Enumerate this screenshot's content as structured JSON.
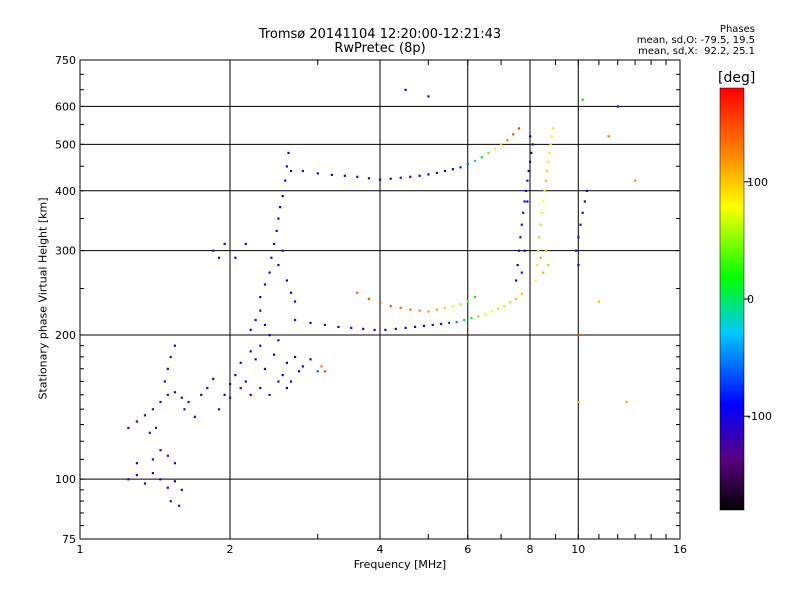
{
  "chart_data": {
    "type": "scatter",
    "title": "Tromsø 20141104 12:20:00-12:21:43",
    "subtitle": "RwPretec (8p)",
    "xlabel": "Frequency [MHz]",
    "ylabel": "Stationary phase Virtual Height [km]",
    "x_scale": "log",
    "y_scale": "log",
    "xlim": [
      1,
      16
    ],
    "ylim": [
      75,
      750
    ],
    "x_ticks": [
      1,
      2,
      4,
      6,
      8,
      10,
      16
    ],
    "y_ticks": [
      75,
      100,
      200,
      300,
      400,
      500,
      600,
      750
    ],
    "grid": true,
    "phase_header": "Phases",
    "phase_stats": [
      "mean, sd,O: -79.5, 19.5",
      "mean, sd,X:  92.2, 25.1"
    ],
    "colorbar": {
      "label": "[deg]",
      "range": [
        -180,
        180
      ],
      "ticks": [
        100,
        0,
        -100
      ]
    },
    "series": [
      {
        "points": [
          [
            1.25,
            100,
            -110
          ],
          [
            1.3,
            102,
            -115
          ],
          [
            1.35,
            98,
            -105
          ],
          [
            1.4,
            103,
            -120
          ],
          [
            1.45,
            100,
            -112
          ],
          [
            1.5,
            96,
            -118
          ],
          [
            1.52,
            90,
            -125
          ],
          [
            1.55,
            99,
            -110
          ],
          [
            1.6,
            95,
            -122
          ],
          [
            1.58,
            88,
            -118
          ],
          [
            1.3,
            108,
            -125
          ],
          [
            1.4,
            110,
            -128
          ],
          [
            1.5,
            112,
            -122
          ],
          [
            1.55,
            108,
            -120
          ],
          [
            1.45,
            115,
            -118
          ],
          [
            1.25,
            128,
            -125
          ],
          [
            1.3,
            132,
            -130
          ],
          [
            1.35,
            136,
            -122
          ],
          [
            1.4,
            140,
            -128
          ],
          [
            1.45,
            145,
            -125
          ],
          [
            1.5,
            150,
            -120
          ],
          [
            1.55,
            152,
            -118
          ],
          [
            1.6,
            148,
            -122
          ],
          [
            1.48,
            160,
            -125
          ],
          [
            1.5,
            170,
            -120
          ],
          [
            1.52,
            180,
            -125
          ],
          [
            1.55,
            190,
            -118
          ],
          [
            1.42,
            128,
            -120
          ],
          [
            1.38,
            125,
            -128
          ],
          [
            1.62,
            140,
            -122
          ],
          [
            1.65,
            145,
            -118
          ],
          [
            1.7,
            135,
            -125
          ],
          [
            1.75,
            150,
            -120
          ],
          [
            1.8,
            155,
            -118
          ],
          [
            1.85,
            162,
            -115
          ],
          [
            1.9,
            140,
            -120
          ],
          [
            1.95,
            150,
            -118
          ],
          [
            2.0,
            158,
            -115
          ],
          [
            2.05,
            165,
            -112
          ],
          [
            2.1,
            175,
            -110
          ],
          [
            2.15,
            160,
            -108
          ],
          [
            2.2,
            185,
            -112
          ],
          [
            2.25,
            178,
            -105
          ],
          [
            2.3,
            190,
            -110
          ],
          [
            2.35,
            170,
            -108
          ],
          [
            2.4,
            200,
            -105
          ],
          [
            2.45,
            182,
            -110
          ],
          [
            2.5,
            195,
            -108
          ],
          [
            2.55,
            165,
            -105
          ],
          [
            2.6,
            175,
            -100
          ],
          [
            2.65,
            160,
            -98
          ],
          [
            2.7,
            180,
            -102
          ],
          [
            2.75,
            168,
            -100
          ],
          [
            2.8,
            172,
            -95
          ],
          [
            2.9,
            178,
            -90
          ],
          [
            3.0,
            168,
            -60
          ],
          [
            3.05,
            172,
            130
          ],
          [
            3.1,
            168,
            150
          ],
          [
            2.2,
            205,
            -110
          ],
          [
            2.25,
            215,
            -112
          ],
          [
            2.3,
            225,
            -108
          ],
          [
            2.35,
            210,
            -112
          ],
          [
            2.0,
            148,
            -120
          ],
          [
            2.1,
            155,
            -118
          ],
          [
            2.2,
            150,
            -112
          ],
          [
            2.3,
            155,
            -110
          ],
          [
            2.4,
            150,
            -108
          ],
          [
            2.5,
            160,
            -105
          ],
          [
            2.6,
            155,
            -102
          ],
          [
            2.3,
            240,
            -110
          ],
          [
            2.35,
            255,
            -112
          ],
          [
            2.4,
            270,
            -108
          ],
          [
            2.42,
            290,
            -110
          ],
          [
            2.45,
            310,
            -112
          ],
          [
            2.48,
            330,
            -105
          ],
          [
            2.5,
            350,
            -108
          ],
          [
            2.52,
            370,
            -100
          ],
          [
            2.55,
            390,
            -102
          ],
          [
            2.58,
            420,
            -105
          ],
          [
            2.6,
            450,
            -98
          ],
          [
            2.62,
            480,
            -100
          ],
          [
            2.65,
            440,
            -95
          ],
          [
            2.55,
            300,
            -105
          ],
          [
            2.5,
            280,
            -108
          ],
          [
            2.6,
            260,
            -102
          ],
          [
            2.65,
            245,
            -100
          ],
          [
            2.7,
            235,
            -98
          ],
          [
            1.85,
            300,
            -112
          ],
          [
            1.9,
            290,
            -115
          ],
          [
            1.95,
            310,
            -108
          ],
          [
            2.05,
            290,
            -110
          ],
          [
            2.15,
            310,
            -105
          ],
          [
            2.7,
            215,
            -105
          ],
          [
            2.9,
            212,
            -108
          ],
          [
            3.1,
            210,
            -110
          ],
          [
            3.3,
            208,
            -112
          ],
          [
            3.5,
            207,
            -115
          ],
          [
            3.7,
            206,
            -118
          ],
          [
            3.9,
            205,
            -120
          ],
          [
            4.1,
            205,
            -118
          ],
          [
            4.3,
            206,
            -115
          ],
          [
            4.5,
            207,
            -110
          ],
          [
            4.7,
            208,
            -105
          ],
          [
            4.9,
            209,
            -100
          ],
          [
            5.1,
            210,
            -95
          ],
          [
            5.3,
            211,
            -85
          ],
          [
            5.5,
            212,
            -70
          ],
          [
            5.7,
            213,
            -50
          ],
          [
            5.9,
            215,
            -20
          ],
          [
            6.1,
            217,
            20
          ],
          [
            6.3,
            219,
            50
          ],
          [
            6.5,
            221,
            70
          ],
          [
            6.7,
            224,
            80
          ],
          [
            6.9,
            227,
            90
          ],
          [
            7.1,
            230,
            95
          ],
          [
            7.3,
            234,
            100
          ],
          [
            7.5,
            238,
            105
          ],
          [
            7.7,
            244,
            100
          ],
          [
            3.6,
            245,
            140
          ],
          [
            3.8,
            238,
            145
          ],
          [
            4.0,
            234,
            150
          ],
          [
            4.2,
            230,
            145
          ],
          [
            4.4,
            228,
            140
          ],
          [
            4.6,
            226,
            135
          ],
          [
            4.8,
            225,
            130
          ],
          [
            5.0,
            224,
            120
          ],
          [
            5.2,
            226,
            110
          ],
          [
            5.4,
            228,
            95
          ],
          [
            5.6,
            230,
            80
          ],
          [
            5.8,
            232,
            60
          ],
          [
            6.0,
            235,
            40
          ],
          [
            6.2,
            240,
            20
          ],
          [
            2.8,
            440,
            -110
          ],
          [
            3.0,
            435,
            -112
          ],
          [
            3.2,
            432,
            -115
          ],
          [
            3.4,
            430,
            -118
          ],
          [
            3.6,
            428,
            -115
          ],
          [
            3.8,
            425,
            -112
          ],
          [
            4.0,
            422,
            -110
          ],
          [
            4.2,
            424,
            -112
          ],
          [
            4.4,
            426,
            -115
          ],
          [
            4.6,
            428,
            -110
          ],
          [
            4.8,
            430,
            -108
          ],
          [
            5.0,
            433,
            -105
          ],
          [
            5.2,
            436,
            -100
          ],
          [
            5.4,
            440,
            -95
          ],
          [
            5.6,
            444,
            -90
          ],
          [
            5.8,
            448,
            -80
          ],
          [
            6.0,
            455,
            -60
          ],
          [
            6.2,
            462,
            -30
          ],
          [
            6.4,
            470,
            10
          ],
          [
            6.6,
            480,
            40
          ],
          [
            6.8,
            490,
            70
          ],
          [
            7.0,
            500,
            100
          ],
          [
            7.2,
            510,
            130
          ],
          [
            7.4,
            525,
            150
          ],
          [
            7.6,
            540,
            160
          ],
          [
            7.5,
            260,
            -100
          ],
          [
            7.55,
            280,
            -105
          ],
          [
            7.6,
            300,
            -110
          ],
          [
            7.65,
            320,
            -108
          ],
          [
            7.7,
            340,
            -105
          ],
          [
            7.75,
            360,
            -110
          ],
          [
            7.8,
            380,
            -108
          ],
          [
            7.85,
            400,
            -112
          ],
          [
            7.9,
            420,
            -110
          ],
          [
            7.95,
            440,
            -105
          ],
          [
            8.0,
            460,
            -100
          ],
          [
            8.05,
            480,
            -110
          ],
          [
            8.1,
            500,
            -108
          ],
          [
            8.0,
            520,
            -105
          ],
          [
            7.9,
            380,
            -95
          ],
          [
            7.8,
            300,
            -90
          ],
          [
            7.7,
            270,
            -85
          ],
          [
            8.2,
            260,
            80
          ],
          [
            8.25,
            280,
            70
          ],
          [
            8.3,
            300,
            60
          ],
          [
            8.35,
            320,
            50
          ],
          [
            8.4,
            340,
            60
          ],
          [
            8.45,
            360,
            70
          ],
          [
            8.5,
            380,
            80
          ],
          [
            8.55,
            400,
            90
          ],
          [
            8.6,
            420,
            100
          ],
          [
            8.65,
            440,
            95
          ],
          [
            8.7,
            460,
            90
          ],
          [
            8.75,
            480,
            85
          ],
          [
            8.8,
            500,
            80
          ],
          [
            8.85,
            520,
            75
          ],
          [
            8.9,
            540,
            70
          ],
          [
            8.6,
            300,
            100
          ],
          [
            8.7,
            280,
            105
          ],
          [
            8.5,
            270,
            110
          ],
          [
            8.4,
            290,
            115
          ],
          [
            9.9,
            300,
            -100
          ],
          [
            10.0,
            320,
            -105
          ],
          [
            10.1,
            340,
            -110
          ],
          [
            10.2,
            360,
            -108
          ],
          [
            10.3,
            380,
            -105
          ],
          [
            10.4,
            400,
            -110
          ],
          [
            10.0,
            280,
            -100
          ],
          [
            10.0,
            200,
            155
          ],
          [
            10.0,
            145,
            110
          ],
          [
            11.0,
            235,
            105
          ],
          [
            12.5,
            145,
            110
          ],
          [
            13.0,
            420,
            120
          ],
          [
            12.0,
            600,
            -110
          ],
          [
            11.5,
            520,
            130
          ],
          [
            4.5,
            650,
            -120
          ],
          [
            5.0,
            630,
            -115
          ],
          [
            10.2,
            620,
            20
          ]
        ]
      }
    ]
  }
}
